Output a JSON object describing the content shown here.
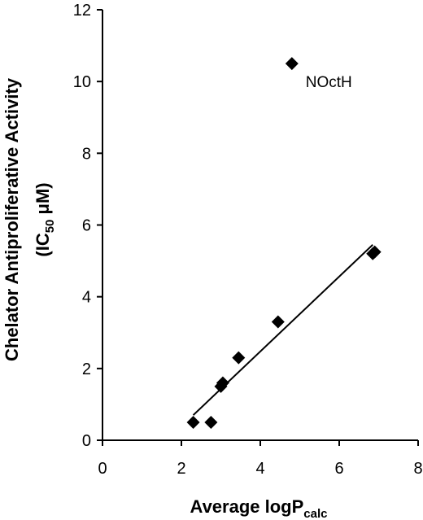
{
  "chart_data": {
    "type": "scatter",
    "title": "",
    "xlabel": {
      "main": "Average logP",
      "sub": "calc"
    },
    "ylabel": {
      "line1": "Chelator Antiproliferative Activity",
      "line2_pre": "(IC",
      "line2_sub": "50",
      "line2_post": " μM)"
    },
    "xlim": [
      0,
      8
    ],
    "ylim": [
      0,
      12
    ],
    "xticks": [
      0,
      2,
      4,
      6,
      8
    ],
    "yticks": [
      0,
      2,
      4,
      6,
      8,
      10,
      12
    ],
    "grid": false,
    "legend": "none",
    "marker": "diamond",
    "marker_color": "#000000",
    "series": [
      {
        "points": [
          {
            "x": 2.3,
            "y": 0.5
          },
          {
            "x": 2.75,
            "y": 0.5
          },
          {
            "x": 3.0,
            "y": 1.5
          },
          {
            "x": 3.05,
            "y": 1.6
          },
          {
            "x": 3.45,
            "y": 2.3
          },
          {
            "x": 4.45,
            "y": 3.3
          },
          {
            "x": 6.85,
            "y": 5.2
          },
          {
            "x": 6.9,
            "y": 5.25
          },
          {
            "x": 4.8,
            "y": 10.5
          }
        ]
      }
    ],
    "trendline": {
      "x1": 2.3,
      "y1": 0.7,
      "x2": 6.85,
      "y2": 5.45
    },
    "annotations": [
      {
        "text": "NOctH",
        "x": 5.15,
        "y": 10.0
      }
    ]
  }
}
